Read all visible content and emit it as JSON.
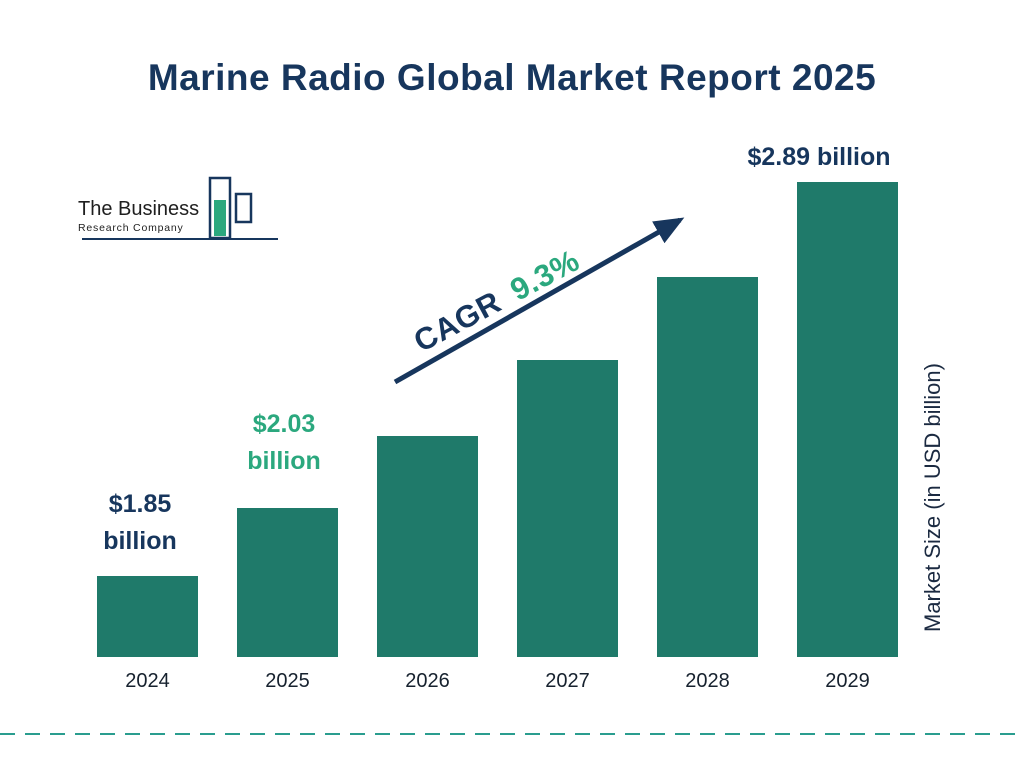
{
  "title": "Marine Radio Global Market Report 2025",
  "logo": {
    "line1": "The Business",
    "line2": "Research Company"
  },
  "annotations": {
    "b2024": {
      "line1": "$1.85",
      "line2": "billion"
    },
    "b2025": {
      "line1": "$2.03",
      "line2": "billion"
    },
    "b2029": {
      "text": "$2.89 billion"
    }
  },
  "cagr": {
    "label": "CAGR",
    "value": "9.3%"
  },
  "colors": {
    "navy": "#17365d",
    "bar_teal": "#1f7a6a",
    "accent_green": "#2ba87e",
    "dash_teal": "#2a9d8f"
  },
  "chart_data": {
    "type": "bar",
    "title": "Marine Radio Global Market Report 2025",
    "categories": [
      "2024",
      "2025",
      "2026",
      "2027",
      "2028",
      "2029"
    ],
    "values": [
      1.85,
      2.03,
      2.22,
      2.42,
      2.64,
      2.89
    ],
    "unit": "USD billion",
    "xlabel": "",
    "ylabel": "Market Size (in USD billion)",
    "data_labels": [
      {
        "category": "2024",
        "text": "$1.85 billion"
      },
      {
        "category": "2025",
        "text": "$2.03 billion"
      },
      {
        "category": "2029",
        "text": "$2.89 billion"
      }
    ],
    "cagr": "9.3%",
    "grid": false,
    "legend": false,
    "bar_color": "#1f7a6a"
  }
}
